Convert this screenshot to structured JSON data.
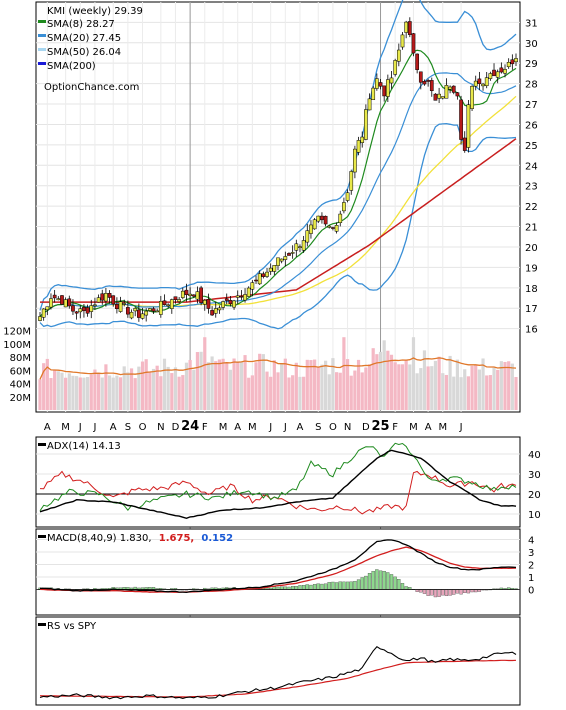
{
  "colors": {
    "sma8": "#1e8a1e",
    "sma20": "#3a8fd6",
    "sma50": "#f2e13a",
    "sma200": "#c81e1e",
    "sma200_legend": "#1a1ad6",
    "candle_up": "#e8e84a",
    "candle_down": "#b51a1a",
    "vol_up": "#f4b8c4",
    "vol_down": "#d8d8d8",
    "vol_avg": "#e0782a",
    "adx": "#000000",
    "plus_di": "#1e8a1e",
    "minus_di": "#d21e1e",
    "macd": "#000000",
    "signal": "#d21e1e",
    "hist_pos": "#8ed88e",
    "hist_neg": "#e7a6bc",
    "rs": "#000000",
    "rs_ma": "#d21e1e",
    "macd_val1": "#d21e1e",
    "macd_val2": "#1a5ad6"
  },
  "legend": {
    "title": "KMI (weekly) 29.39",
    "items": [
      {
        "label": "SMA(8) 28.27",
        "color": "#1e8a1e"
      },
      {
        "label": "SMA(20) 27.45",
        "color": "#3a8fd6"
      },
      {
        "label": "SMA(50) 26.04",
        "color": "#a8d6f0"
      },
      {
        "label": "SMA(200)",
        "color": "#1a1ad6"
      }
    ],
    "source": "OptionChance.com"
  },
  "adx_label": "ADX(14) 14.13",
  "macd_label": {
    "prefix": "MACD(8,40,9) 1.830,",
    "v1": "1.675,",
    "v2": "0.152"
  },
  "rs_label": "RS vs SPY",
  "chart_data": {
    "type": "line",
    "price_axis": {
      "ticks": [
        16,
        17,
        18,
        19,
        20,
        21,
        22,
        23,
        24,
        25,
        26,
        27,
        28,
        29,
        30,
        31
      ],
      "range": [
        15.2,
        31.8
      ]
    },
    "volume_axis": {
      "ticks": [
        "20M",
        "40M",
        "60M",
        "80M",
        "100M",
        "120M"
      ],
      "values": [
        20,
        40,
        60,
        80,
        100,
        120
      ],
      "max": 136
    },
    "x_labels": [
      "A",
      "M",
      "J",
      "J",
      "A",
      "S",
      "O",
      "N",
      "D",
      "24",
      "F",
      "M",
      "A",
      "M",
      "J",
      "J",
      "A",
      "S",
      "O",
      "N",
      "D",
      "25",
      "F",
      "M",
      "A",
      "M",
      "J"
    ],
    "x_label_weeks": [
      2,
      7,
      11,
      15,
      20,
      24,
      28,
      33,
      37,
      41,
      45,
      50,
      54,
      58,
      63,
      67,
      71,
      76,
      80,
      84,
      89,
      93,
      97,
      102,
      106,
      110,
      115
    ],
    "year_separators": [
      41,
      93
    ],
    "weeks": 120,
    "price_keypoints": [
      [
        0,
        16.6
      ],
      [
        3,
        17.6
      ],
      [
        6,
        17.4
      ],
      [
        9,
        16.9
      ],
      [
        12,
        16.8
      ],
      [
        15,
        17.3
      ],
      [
        18,
        17.7
      ],
      [
        21,
        17.2
      ],
      [
        24,
        16.9
      ],
      [
        27,
        16.7
      ],
      [
        30,
        16.9
      ],
      [
        33,
        17.1
      ],
      [
        36,
        17.4
      ],
      [
        39,
        17.7
      ],
      [
        42,
        17.8
      ],
      [
        45,
        17.2
      ],
      [
        47,
        16.8
      ],
      [
        50,
        17.2
      ],
      [
        53,
        17.5
      ],
      [
        56,
        17.9
      ],
      [
        59,
        18.3
      ],
      [
        62,
        18.8
      ],
      [
        65,
        19.3
      ],
      [
        68,
        19.7
      ],
      [
        71,
        20.2
      ],
      [
        74,
        20.9
      ],
      [
        76,
        21.3
      ],
      [
        78,
        21.0
      ],
      [
        80,
        20.9
      ],
      [
        82,
        21.7
      ],
      [
        84,
        22.8
      ],
      [
        86,
        24.7
      ],
      [
        88,
        25.5
      ],
      [
        90,
        27.5
      ],
      [
        92,
        28.2
      ],
      [
        94,
        27.6
      ],
      [
        96,
        28.3
      ],
      [
        98,
        29.6
      ],
      [
        99,
        30.4
      ],
      [
        100,
        31.2
      ],
      [
        102,
        29.3
      ],
      [
        104,
        28.3
      ],
      [
        106,
        28.0
      ],
      [
        108,
        27.1
      ],
      [
        110,
        27.5
      ],
      [
        112,
        28.0
      ],
      [
        114,
        27.6
      ],
      [
        115,
        25.5
      ],
      [
        116,
        24.7
      ],
      [
        117,
        26.8
      ],
      [
        118,
        27.7
      ],
      [
        119,
        28.3
      ],
      [
        120,
        28.0
      ],
      [
        122,
        28.4
      ],
      [
        124,
        28.6
      ],
      [
        126,
        28.7
      ],
      [
        128,
        28.9
      ],
      [
        130,
        29.4
      ]
    ],
    "volume_keypoints": [
      [
        0,
        60
      ],
      [
        10,
        58
      ],
      [
        20,
        62
      ],
      [
        30,
        60
      ],
      [
        40,
        65
      ],
      [
        45,
        80
      ],
      [
        50,
        62
      ],
      [
        60,
        66
      ],
      [
        70,
        60
      ],
      [
        80,
        68
      ],
      [
        90,
        70
      ],
      [
        95,
        95
      ],
      [
        100,
        78
      ],
      [
        110,
        64
      ],
      [
        120,
        62
      ],
      [
        130,
        62
      ]
    ],
    "adx_axis": {
      "ticks": [
        10,
        20,
        30,
        40
      ],
      "range": [
        5,
        47
      ],
      "reference": 20
    },
    "adx_keypoints": [
      [
        0,
        11
      ],
      [
        10,
        17
      ],
      [
        20,
        16
      ],
      [
        30,
        12
      ],
      [
        40,
        8
      ],
      [
        50,
        12
      ],
      [
        60,
        13
      ],
      [
        70,
        16
      ],
      [
        80,
        18
      ],
      [
        86,
        28
      ],
      [
        92,
        38
      ],
      [
        96,
        42
      ],
      [
        100,
        40
      ],
      [
        104,
        38
      ],
      [
        108,
        32
      ],
      [
        112,
        26
      ],
      [
        116,
        22
      ],
      [
        120,
        17
      ],
      [
        126,
        14
      ]
    ],
    "plus_di_keypoints": [
      [
        0,
        13
      ],
      [
        8,
        21
      ],
      [
        16,
        20
      ],
      [
        24,
        13
      ],
      [
        32,
        17
      ],
      [
        40,
        20
      ],
      [
        48,
        18
      ],
      [
        56,
        22
      ],
      [
        64,
        18
      ],
      [
        70,
        22
      ],
      [
        74,
        35
      ],
      [
        80,
        30
      ],
      [
        86,
        40
      ],
      [
        90,
        44
      ],
      [
        94,
        38
      ],
      [
        98,
        46
      ],
      [
        102,
        40
      ],
      [
        106,
        27
      ],
      [
        112,
        28
      ],
      [
        118,
        26
      ],
      [
        124,
        22
      ],
      [
        126,
        24
      ]
    ],
    "minus_di_keypoints": [
      [
        0,
        22
      ],
      [
        6,
        30
      ],
      [
        12,
        26
      ],
      [
        20,
        18
      ],
      [
        26,
        22
      ],
      [
        34,
        23
      ],
      [
        40,
        26
      ],
      [
        46,
        20
      ],
      [
        52,
        24
      ],
      [
        58,
        17
      ],
      [
        64,
        19
      ],
      [
        70,
        14
      ],
      [
        76,
        12
      ],
      [
        82,
        14
      ],
      [
        88,
        11
      ],
      [
        92,
        12
      ],
      [
        96,
        14
      ],
      [
        100,
        13
      ],
      [
        102,
        30
      ],
      [
        106,
        30
      ],
      [
        112,
        24
      ],
      [
        118,
        26
      ],
      [
        124,
        22
      ],
      [
        126,
        24
      ]
    ],
    "macd_axis": {
      "ticks": [
        0,
        1,
        2,
        3,
        4
      ],
      "range": [
        -1.8,
        4.6
      ]
    },
    "macd_keypoints": [
      [
        0,
        0.1
      ],
      [
        10,
        -0.1
      ],
      [
        20,
        0.0
      ],
      [
        30,
        -0.1
      ],
      [
        40,
        -0.2
      ],
      [
        50,
        0.0
      ],
      [
        60,
        0.2
      ],
      [
        70,
        0.7
      ],
      [
        80,
        1.6
      ],
      [
        86,
        2.4
      ],
      [
        92,
        3.8
      ],
      [
        96,
        4.0
      ],
      [
        100,
        3.6
      ],
      [
        104,
        2.9
      ],
      [
        108,
        2.2
      ],
      [
        112,
        1.8
      ],
      [
        116,
        1.6
      ],
      [
        120,
        1.6
      ],
      [
        126,
        1.8
      ]
    ],
    "signal_keypoints": [
      [
        0,
        0.0
      ],
      [
        10,
        -0.1
      ],
      [
        20,
        -0.1
      ],
      [
        30,
        -0.2
      ],
      [
        40,
        -0.2
      ],
      [
        50,
        -0.1
      ],
      [
        60,
        0.1
      ],
      [
        70,
        0.5
      ],
      [
        80,
        1.2
      ],
      [
        86,
        1.9
      ],
      [
        92,
        2.7
      ],
      [
        96,
        3.1
      ],
      [
        100,
        3.4
      ],
      [
        104,
        3.1
      ],
      [
        108,
        2.6
      ],
      [
        112,
        2.1
      ],
      [
        116,
        1.8
      ],
      [
        120,
        1.7
      ],
      [
        126,
        1.7
      ]
    ],
    "rs_keypoints": [
      [
        0,
        0.05
      ],
      [
        10,
        0.08
      ],
      [
        20,
        0.04
      ],
      [
        30,
        0.07
      ],
      [
        40,
        0.03
      ],
      [
        48,
        0.06
      ],
      [
        56,
        0.14
      ],
      [
        64,
        0.2
      ],
      [
        72,
        0.3
      ],
      [
        80,
        0.38
      ],
      [
        84,
        0.45
      ],
      [
        88,
        0.52
      ],
      [
        92,
        0.9
      ],
      [
        96,
        0.78
      ],
      [
        100,
        0.65
      ],
      [
        104,
        0.7
      ],
      [
        108,
        0.62
      ],
      [
        112,
        0.68
      ],
      [
        116,
        0.66
      ],
      [
        120,
        0.69
      ],
      [
        126,
        0.78
      ]
    ],
    "rs_ma_keypoints": [
      [
        0,
        0.07
      ],
      [
        20,
        0.06
      ],
      [
        40,
        0.05
      ],
      [
        56,
        0.1
      ],
      [
        70,
        0.22
      ],
      [
        84,
        0.36
      ],
      [
        92,
        0.5
      ],
      [
        100,
        0.62
      ],
      [
        110,
        0.64
      ],
      [
        126,
        0.66
      ]
    ]
  }
}
